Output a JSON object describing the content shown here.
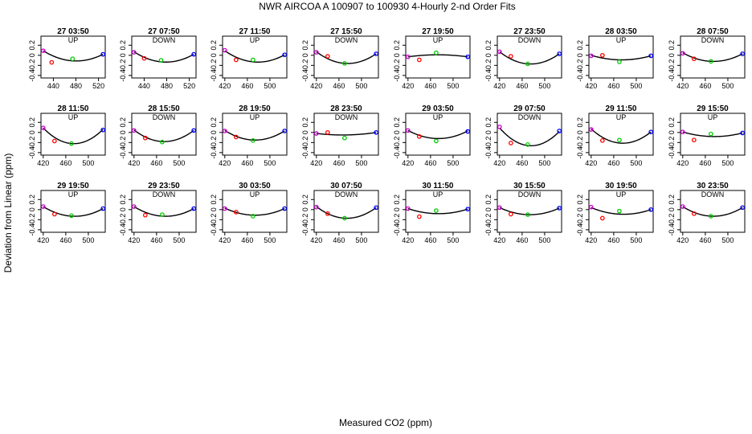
{
  "title": "NWR   AIRCOA A   100907 to 100930   4-Hourly 2-nd Order Fits",
  "ylabel": "Deviation from Linear (ppm)",
  "xlabel": "Measured CO2 (ppm)",
  "colors": {
    "pts": [
      "#cc00cc",
      "#ff0000",
      "#00cc00",
      "#0000ff"
    ],
    "curve": "#000000"
  },
  "chart_data": {
    "type": "scatter",
    "ylim": [
      -0.45,
      0.38
    ],
    "yticks": [
      -0.4,
      -0.2,
      0.0,
      0.2
    ],
    "yticklabels": [
      "-0.4",
      "-0.2",
      "0",
      "0.2"
    ],
    "panels": [
      {
        "title": "27 03:50",
        "dir": "UP",
        "xlim": [
          418,
          532
        ],
        "xticks": [
          440,
          480,
          520
        ],
        "pts": [
          [
            422,
            0.09
          ],
          [
            437,
            -0.14
          ],
          [
            474,
            -0.07
          ],
          [
            528,
            0.02
          ]
        ],
        "fit": [
          0.09,
          -0.11,
          0.02
        ]
      },
      {
        "title": "27 07:50",
        "dir": "DOWN",
        "xlim": [
          418,
          532
        ],
        "xticks": [
          440,
          480,
          520
        ],
        "pts": [
          [
            422,
            0.06
          ],
          [
            440,
            -0.06
          ],
          [
            470,
            -0.1
          ],
          [
            528,
            0.02
          ]
        ],
        "fit": [
          0.07,
          -0.13,
          0.02
        ]
      },
      {
        "title": "27 11:50",
        "dir": "UP",
        "xlim": [
          416,
          530
        ],
        "xticks": [
          420,
          460,
          500
        ],
        "pts": [
          [
            420,
            0.1
          ],
          [
            440,
            -0.09
          ],
          [
            470,
            -0.09
          ],
          [
            526,
            0.01
          ]
        ],
        "fit": [
          0.09,
          -0.13,
          0.01
        ]
      },
      {
        "title": "27 15:50",
        "dir": "DOWN",
        "xlim": [
          416,
          530
        ],
        "xticks": [
          420,
          460,
          500
        ],
        "pts": [
          [
            420,
            0.06
          ],
          [
            440,
            -0.02
          ],
          [
            470,
            -0.16
          ],
          [
            526,
            0.03
          ]
        ],
        "fit": [
          0.07,
          -0.16,
          0.03
        ]
      },
      {
        "title": "27 19:50",
        "dir": "UP",
        "xlim": [
          416,
          530
        ],
        "xticks": [
          420,
          460,
          500
        ],
        "pts": [
          [
            420,
            -0.03
          ],
          [
            440,
            -0.09
          ],
          [
            470,
            0.05
          ],
          [
            526,
            -0.03
          ]
        ],
        "fit": [
          -0.03,
          0.01,
          -0.03
        ]
      },
      {
        "title": "27 23:50",
        "dir": "DOWN",
        "xlim": [
          416,
          530
        ],
        "xticks": [
          420,
          460,
          500
        ],
        "pts": [
          [
            420,
            0.07
          ],
          [
            440,
            -0.02
          ],
          [
            470,
            -0.17
          ],
          [
            526,
            0.03
          ]
        ],
        "fit": [
          0.07,
          -0.17,
          0.03
        ]
      },
      {
        "title": "28 03:50",
        "dir": "UP",
        "xlim": [
          416,
          530
        ],
        "xticks": [
          420,
          460,
          500
        ],
        "pts": [
          [
            420,
            -0.01
          ],
          [
            440,
            0.0
          ],
          [
            470,
            -0.13
          ],
          [
            526,
            -0.01
          ]
        ],
        "fit": [
          0.0,
          -0.09,
          -0.01
        ]
      },
      {
        "title": "28 07:50",
        "dir": "DOWN",
        "xlim": [
          416,
          530
        ],
        "xticks": [
          420,
          460,
          500
        ],
        "pts": [
          [
            420,
            0.04
          ],
          [
            440,
            -0.07
          ],
          [
            470,
            -0.12
          ],
          [
            526,
            0.03
          ]
        ],
        "fit": [
          0.05,
          -0.12,
          0.03
        ]
      },
      {
        "title": "28 11:50",
        "dir": "UP",
        "xlim": [
          416,
          530
        ],
        "xticks": [
          420,
          460,
          500
        ],
        "pts": [
          [
            420,
            0.09
          ],
          [
            440,
            -0.17
          ],
          [
            470,
            -0.22
          ],
          [
            526,
            0.05
          ]
        ],
        "fit": [
          0.09,
          -0.22,
          0.06
        ]
      },
      {
        "title": "28 15:50",
        "dir": "DOWN",
        "xlim": [
          416,
          530
        ],
        "xticks": [
          420,
          460,
          500
        ],
        "pts": [
          [
            420,
            0.04
          ],
          [
            440,
            -0.11
          ],
          [
            470,
            -0.19
          ],
          [
            526,
            0.04
          ]
        ],
        "fit": [
          0.05,
          -0.18,
          0.04
        ]
      },
      {
        "title": "28 19:50",
        "dir": "UP",
        "xlim": [
          416,
          530
        ],
        "xticks": [
          420,
          460,
          500
        ],
        "pts": [
          [
            420,
            0.03
          ],
          [
            440,
            -0.09
          ],
          [
            470,
            -0.16
          ],
          [
            526,
            0.03
          ]
        ],
        "fit": [
          0.04,
          -0.15,
          0.03
        ]
      },
      {
        "title": "28 23:50",
        "dir": "DOWN",
        "xlim": [
          416,
          530
        ],
        "xticks": [
          420,
          460,
          500
        ],
        "pts": [
          [
            420,
            -0.02
          ],
          [
            440,
            0.0
          ],
          [
            470,
            -0.11
          ],
          [
            526,
            0.0
          ]
        ],
        "fit": [
          -0.02,
          -0.05,
          0.0
        ]
      },
      {
        "title": "29 03:50",
        "dir": "UP",
        "xlim": [
          416,
          530
        ],
        "xticks": [
          420,
          460,
          500
        ],
        "pts": [
          [
            420,
            0.04
          ],
          [
            440,
            -0.08
          ],
          [
            470,
            -0.17
          ],
          [
            526,
            0.02
          ]
        ],
        "fit": [
          0.04,
          -0.12,
          0.03
        ]
      },
      {
        "title": "29 07:50",
        "dir": "DOWN",
        "xlim": [
          416,
          530
        ],
        "xticks": [
          420,
          460,
          500
        ],
        "pts": [
          [
            420,
            0.11
          ],
          [
            440,
            -0.21
          ],
          [
            470,
            -0.24
          ],
          [
            526,
            0.03
          ]
        ],
        "fit": [
          0.09,
          -0.26,
          0.02
        ]
      },
      {
        "title": "29 11:50",
        "dir": "UP",
        "xlim": [
          416,
          530
        ],
        "xticks": [
          420,
          460,
          500
        ],
        "pts": [
          [
            420,
            0.06
          ],
          [
            440,
            -0.16
          ],
          [
            470,
            -0.15
          ],
          [
            526,
            0.01
          ]
        ],
        "fit": [
          0.07,
          -0.21,
          0.01
        ]
      },
      {
        "title": "29 15:50",
        "dir": "UP",
        "xlim": [
          416,
          530
        ],
        "xticks": [
          420,
          460,
          500
        ],
        "pts": [
          [
            420,
            0.01
          ],
          [
            440,
            -0.15
          ],
          [
            470,
            -0.03
          ],
          [
            526,
            -0.01
          ]
        ],
        "fit": [
          0.01,
          -0.08,
          -0.01
        ]
      },
      {
        "title": "29 19:50",
        "dir": "UP",
        "xlim": [
          416,
          530
        ],
        "xticks": [
          420,
          460,
          500
        ],
        "pts": [
          [
            420,
            0.06
          ],
          [
            440,
            -0.09
          ],
          [
            470,
            -0.12
          ],
          [
            526,
            0.02
          ]
        ],
        "fit": [
          0.06,
          -0.13,
          0.02
        ]
      },
      {
        "title": "29 23:50",
        "dir": "DOWN",
        "xlim": [
          416,
          530
        ],
        "xticks": [
          420,
          460,
          500
        ],
        "pts": [
          [
            420,
            0.06
          ],
          [
            440,
            -0.11
          ],
          [
            470,
            -0.1
          ],
          [
            526,
            0.02
          ]
        ],
        "fit": [
          0.06,
          -0.13,
          0.02
        ]
      },
      {
        "title": "30 03:50",
        "dir": "UP",
        "xlim": [
          416,
          530
        ],
        "xticks": [
          420,
          460,
          500
        ],
        "pts": [
          [
            420,
            0.02
          ],
          [
            440,
            -0.05
          ],
          [
            470,
            -0.13
          ],
          [
            526,
            0.02
          ]
        ],
        "fit": [
          0.03,
          -0.11,
          0.02
        ]
      },
      {
        "title": "30 07:50",
        "dir": "DOWN",
        "xlim": [
          416,
          530
        ],
        "xticks": [
          420,
          460,
          500
        ],
        "pts": [
          [
            420,
            0.05
          ],
          [
            440,
            -0.08
          ],
          [
            470,
            -0.17
          ],
          [
            526,
            0.04
          ]
        ],
        "fit": [
          0.06,
          -0.17,
          0.04
        ]
      },
      {
        "title": "30 11:50",
        "dir": "UP",
        "xlim": [
          416,
          530
        ],
        "xticks": [
          420,
          460,
          500
        ],
        "pts": [
          [
            420,
            0.02
          ],
          [
            440,
            -0.14
          ],
          [
            470,
            -0.02
          ],
          [
            526,
            0.01
          ]
        ],
        "fit": [
          0.02,
          -0.08,
          0.01
        ]
      },
      {
        "title": "30 15:50",
        "dir": "DOWN",
        "xlim": [
          416,
          530
        ],
        "xticks": [
          420,
          460,
          500
        ],
        "pts": [
          [
            420,
            0.04
          ],
          [
            440,
            -0.09
          ],
          [
            470,
            -0.1
          ],
          [
            526,
            0.03
          ]
        ],
        "fit": [
          0.04,
          -0.1,
          0.03
        ]
      },
      {
        "title": "30 19:50",
        "dir": "UP",
        "xlim": [
          416,
          530
        ],
        "xticks": [
          420,
          460,
          500
        ],
        "pts": [
          [
            420,
            0.05
          ],
          [
            440,
            -0.17
          ],
          [
            470,
            -0.03
          ],
          [
            526,
            0.0
          ]
        ],
        "fit": [
          0.04,
          -0.09,
          0.0
        ]
      },
      {
        "title": "30 23:50",
        "dir": "DOWN",
        "xlim": [
          416,
          530
        ],
        "xticks": [
          420,
          460,
          500
        ],
        "pts": [
          [
            420,
            0.06
          ],
          [
            440,
            -0.08
          ],
          [
            470,
            -0.13
          ],
          [
            526,
            0.04
          ]
        ],
        "fit": [
          0.06,
          -0.13,
          0.04
        ]
      }
    ]
  }
}
